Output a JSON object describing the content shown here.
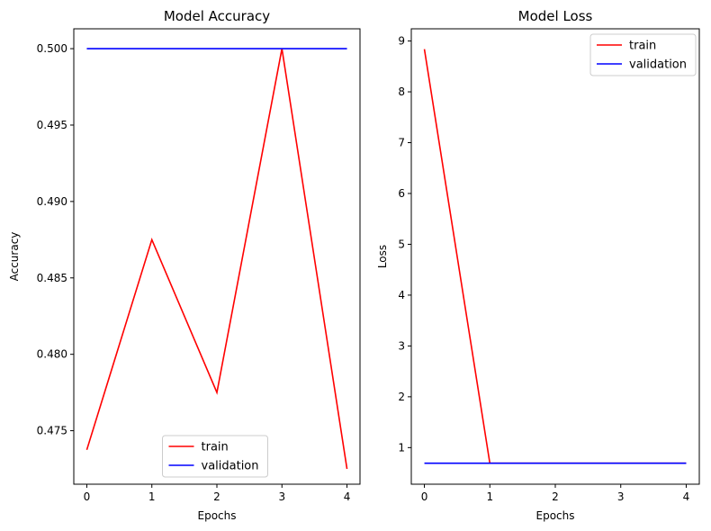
{
  "chart_data": [
    {
      "type": "line",
      "title": "Model Accuracy",
      "xlabel": "Epochs",
      "ylabel": "Accuracy",
      "x": [
        0,
        1,
        2,
        3,
        4
      ],
      "xlim": [
        -0.2,
        4.2
      ],
      "ylim": [
        0.4715,
        0.5013
      ],
      "xticks": [
        0,
        1,
        2,
        3,
        4
      ],
      "yticks": [
        0.475,
        0.48,
        0.485,
        0.49,
        0.495,
        0.5
      ],
      "ytick_labels": [
        "0.475",
        "0.480",
        "0.485",
        "0.490",
        "0.495",
        "0.500"
      ],
      "grid": false,
      "legend_position": "lower-center",
      "series": [
        {
          "name": "train",
          "color": "#ff0000",
          "values": [
            0.47375,
            0.4875,
            0.4775,
            0.5,
            0.4725
          ]
        },
        {
          "name": "validation",
          "color": "#0000ff",
          "values": [
            0.5,
            0.5,
            0.5,
            0.5,
            0.5
          ]
        }
      ]
    },
    {
      "type": "line",
      "title": "Model Loss",
      "xlabel": "Epochs",
      "ylabel": "Loss",
      "x": [
        0,
        1,
        2,
        3,
        4
      ],
      "xlim": [
        -0.2,
        4.2
      ],
      "ylim": [
        0.28,
        9.24
      ],
      "xticks": [
        0,
        1,
        2,
        3,
        4
      ],
      "yticks": [
        1,
        2,
        3,
        4,
        5,
        6,
        7,
        8,
        9
      ],
      "ytick_labels": [
        "1",
        "2",
        "3",
        "4",
        "5",
        "6",
        "7",
        "8",
        "9"
      ],
      "grid": false,
      "legend_position": "upper-right",
      "series": [
        {
          "name": "train",
          "color": "#ff0000",
          "values": [
            8.84,
            0.693,
            0.693,
            0.693,
            0.693
          ]
        },
        {
          "name": "validation",
          "color": "#0000ff",
          "values": [
            0.693,
            0.693,
            0.693,
            0.693,
            0.693
          ]
        }
      ]
    }
  ]
}
